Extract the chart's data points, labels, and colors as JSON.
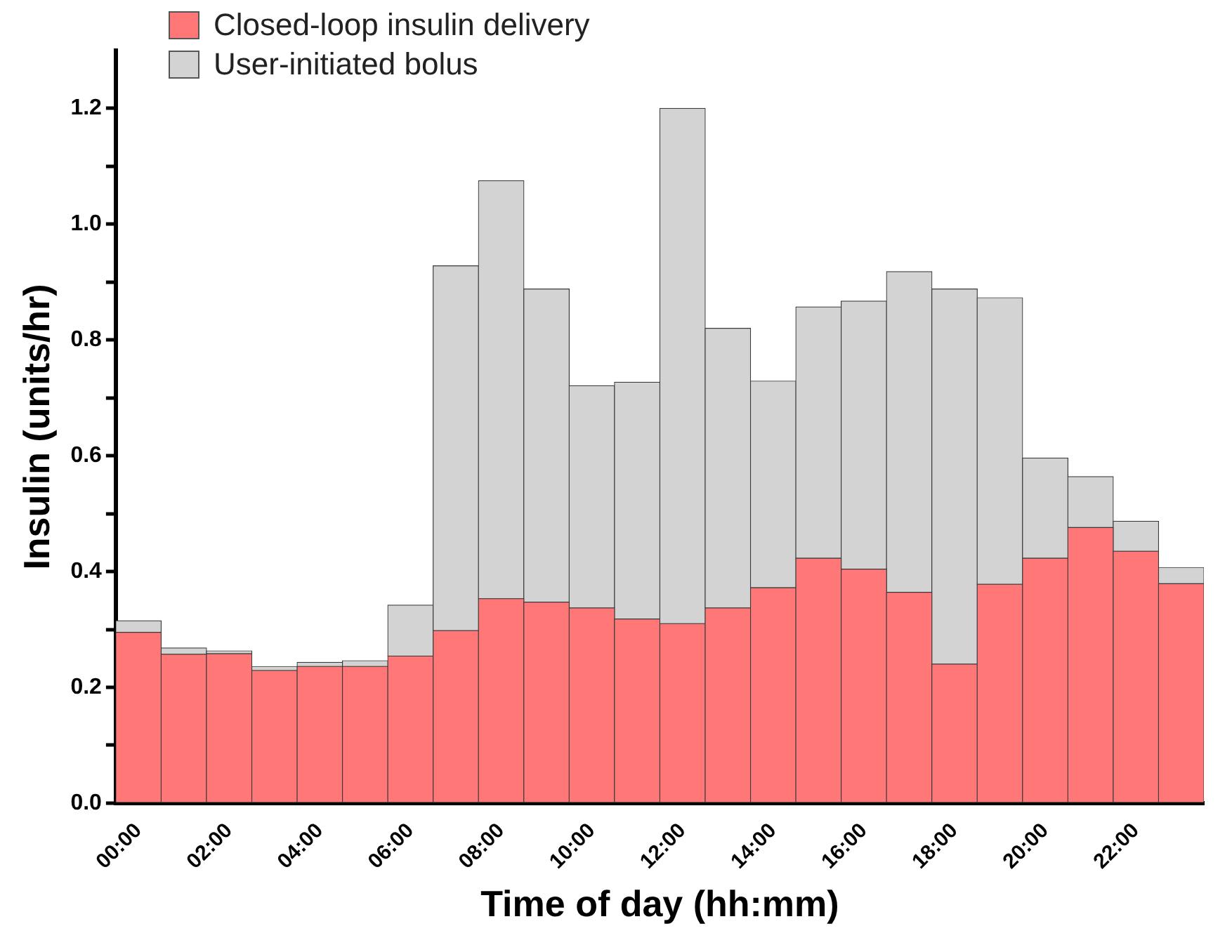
{
  "chart_data": {
    "type": "bar",
    "stacked": true,
    "xlabel": "Time of day (hh:mm)",
    "ylabel": "Insulin (units/hr)",
    "categories": [
      "00:00",
      null,
      "02:00",
      null,
      "04:00",
      null,
      "06:00",
      null,
      "08:00",
      null,
      "10:00",
      null,
      "12:00",
      null,
      "14:00",
      null,
      "16:00",
      null,
      "18:00",
      null,
      "20:00",
      null,
      "22:00",
      null
    ],
    "series": [
      {
        "name": "Closed-loop insulin delivery",
        "color": "#ff7777",
        "values": [
          0.295,
          0.257,
          0.258,
          0.229,
          0.236,
          0.236,
          0.254,
          0.298,
          0.353,
          0.347,
          0.337,
          0.318,
          0.31,
          0.337,
          0.372,
          0.423,
          0.404,
          0.364,
          0.24,
          0.378,
          0.423,
          0.476,
          0.435,
          0.379
        ]
      },
      {
        "name": "User-initiated bolus",
        "color": "#d3d3d3",
        "values": [
          0.02,
          0.011,
          0.005,
          0.007,
          0.007,
          0.01,
          0.088,
          0.63,
          0.722,
          0.541,
          0.384,
          0.409,
          0.89,
          0.483,
          0.357,
          0.434,
          0.463,
          0.554,
          0.648,
          0.495,
          0.173,
          0.088,
          0.052,
          0.028
        ]
      }
    ],
    "ylim": [
      0,
      1.3
    ],
    "yticks": [
      {
        "value": 0,
        "label": "0.0"
      },
      {
        "value": 0.1,
        "label": null
      },
      {
        "value": 0.2,
        "label": "0.2"
      },
      {
        "value": 0.3,
        "label": null
      },
      {
        "value": 0.4,
        "label": "0.4"
      },
      {
        "value": 0.5,
        "label": null
      },
      {
        "value": 0.6,
        "label": "0.6"
      },
      {
        "value": 0.7,
        "label": null
      },
      {
        "value": 0.8,
        "label": "0.8"
      },
      {
        "value": 0.9,
        "label": null
      },
      {
        "value": 1.0,
        "label": "1.0"
      },
      {
        "value": 1.1,
        "label": null
      },
      {
        "value": 1.2,
        "label": "1.2"
      }
    ],
    "grid": false,
    "legend": "top left"
  }
}
